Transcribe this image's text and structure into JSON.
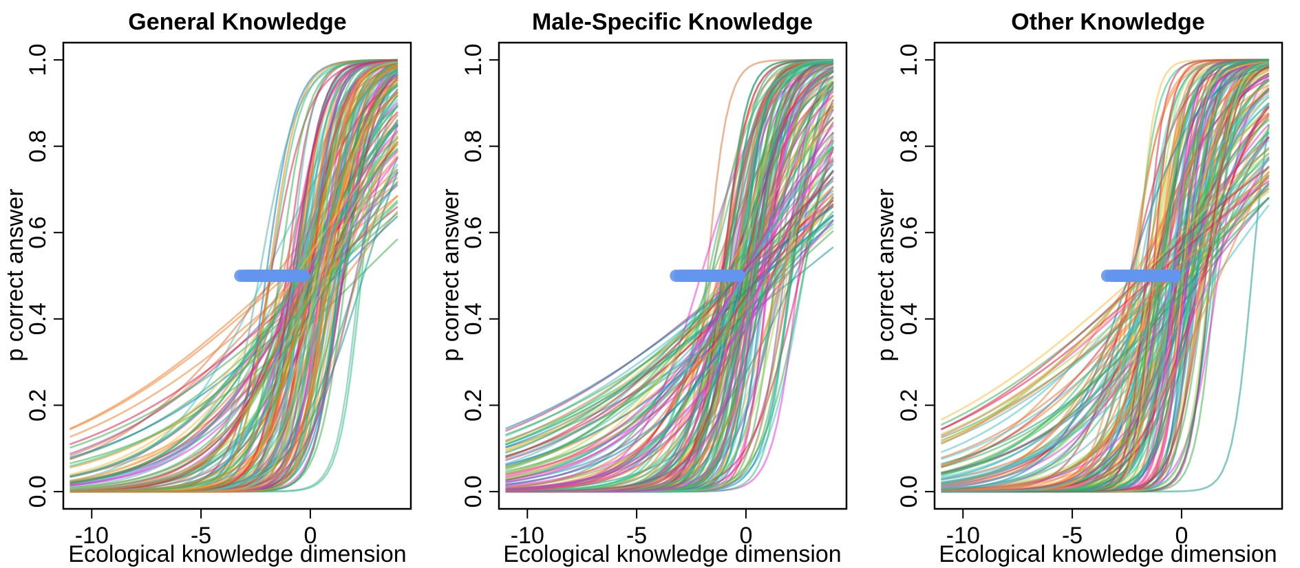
{
  "chart_data": [
    {
      "type": "line",
      "title": "General Knowledge",
      "xlabel": "Ecological knowledge dimension",
      "ylabel": "p correct answer",
      "xlim": [
        -11.3,
        4.6
      ],
      "ylim": [
        -0.04,
        1.04
      ],
      "xticks": [
        -10,
        -5,
        0
      ],
      "yticks": [
        0.0,
        0.2,
        0.4,
        0.6,
        0.8,
        1.0
      ],
      "curve_x_range": [
        -11.0,
        4.0
      ],
      "grid": false,
      "n_curves_drawn": 160,
      "curve_params": {
        "seed": 11,
        "center_mean": 0.2,
        "center_sd": 0.9,
        "slope_min": 0.18,
        "slope_max": 2.0,
        "hue_bias": "red-green-teal"
      },
      "series": [
        {
          "type": "scatter",
          "description_points": "item difficulty points at p = 0.5",
          "x_range": [
            -3.2,
            -0.3
          ],
          "y": 0.5,
          "color": "#6495ED"
        }
      ]
    },
    {
      "type": "line",
      "title": "Male-Specific Knowledge",
      "xlabel": "Ecological knowledge dimension",
      "ylabel": "p correct answer",
      "xlim": [
        -11.3,
        4.6
      ],
      "ylim": [
        -0.04,
        1.04
      ],
      "xticks": [
        -10,
        -5,
        0
      ],
      "yticks": [
        0.0,
        0.2,
        0.4,
        0.6,
        0.8,
        1.0
      ],
      "curve_x_range": [
        -11.0,
        4.0
      ],
      "grid": false,
      "n_curves_drawn": 160,
      "curve_params": {
        "seed": 29,
        "center_mean": 0.0,
        "center_sd": 1.0,
        "slope_min": 0.16,
        "slope_max": 2.2,
        "hue_bias": "teal-orange-red"
      },
      "series": [
        {
          "type": "scatter",
          "x_range": [
            -3.2,
            -0.3
          ],
          "y": 0.5,
          "color": "#6495ED"
        }
      ]
    },
    {
      "type": "line",
      "title": "Other Knowledge",
      "xlabel": "Ecological knowledge dimension",
      "ylabel": "p correct answer",
      "xlim": [
        -11.3,
        4.6
      ],
      "ylim": [
        -0.04,
        1.04
      ],
      "xticks": [
        -10,
        -5,
        0
      ],
      "yticks": [
        0.0,
        0.2,
        0.4,
        0.6,
        0.8,
        1.0
      ],
      "curve_x_range": [
        -11.0,
        4.0
      ],
      "grid": false,
      "n_curves_drawn": 160,
      "curve_params": {
        "seed": 47,
        "center_mean": -0.3,
        "center_sd": 1.1,
        "slope_min": 0.18,
        "slope_max": 2.6,
        "hue_bias": "green-orange-red"
      },
      "series": [
        {
          "type": "scatter",
          "x_range": [
            -3.4,
            -0.3
          ],
          "y": 0.5,
          "color": "#6495ED"
        }
      ]
    }
  ],
  "palette": [
    "#E6194B",
    "#3CB44B",
    "#F58231",
    "#0082C8",
    "#F032E6",
    "#46C3D2",
    "#FFBB44",
    "#D22D4A",
    "#2EC27E",
    "#1A9E8F",
    "#E8743B",
    "#4DAF4A",
    "#984EA3",
    "#A6D854",
    "#FF7F00",
    "#5AB4AC"
  ]
}
